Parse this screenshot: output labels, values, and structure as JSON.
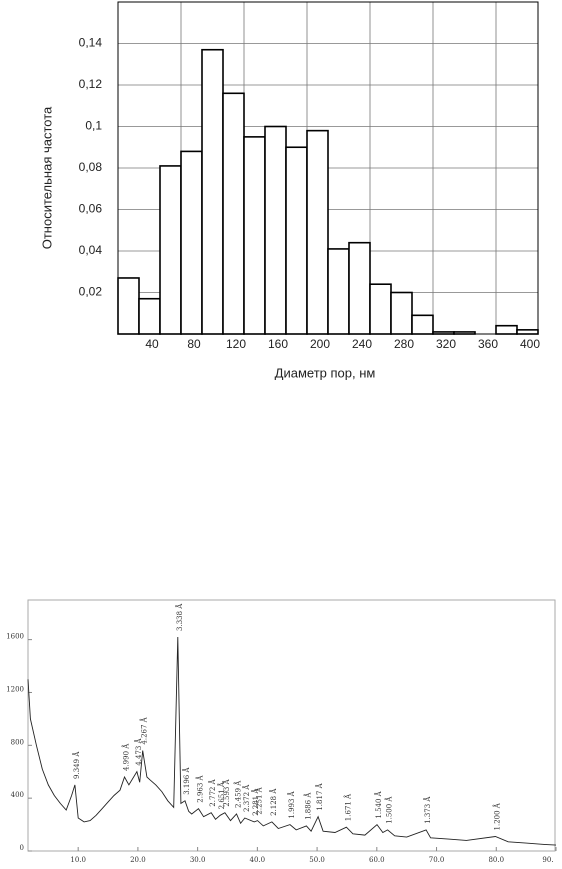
{
  "chart_data": [
    {
      "type": "histogram",
      "x_label": "Диаметр пор, нм",
      "y_label": "Относительная частота",
      "bins": [
        0,
        20,
        40,
        60,
        80,
        100,
        120,
        140,
        160,
        180,
        200,
        220,
        240,
        260,
        280,
        300,
        320,
        340,
        360,
        380,
        400
      ],
      "values": [
        0.027,
        0.017,
        0.081,
        0.088,
        0.137,
        0.116,
        0.095,
        0.1,
        0.09,
        0.098,
        0.041,
        0.044,
        0.024,
        0.02,
        0.009,
        0.001,
        0.001,
        0,
        0.004,
        0.002
      ],
      "color": "#ffffff",
      "xlim": [
        0,
        400
      ],
      "xticks": [
        40,
        80,
        120,
        160,
        200,
        240,
        280,
        320,
        360,
        400
      ],
      "x_grid_lines": [
        60,
        120,
        180,
        240,
        300,
        360
      ],
      "ylim": [
        0,
        0.16
      ],
      "yticks": [
        {
          "value": 0.02,
          "label": "0,02"
        },
        {
          "value": 0.04,
          "label": "0,04"
        },
        {
          "value": 0.06,
          "label": "0,06"
        },
        {
          "value": 0.08,
          "label": "0,08"
        },
        {
          "value": 0.1,
          "label": "0,1"
        },
        {
          "value": 0.12,
          "label": "0,12"
        },
        {
          "value": 0.14,
          "label": "0,14"
        }
      ],
      "grid": true
    },
    {
      "type": "line",
      "x": [
        1.6,
        2,
        3,
        4,
        5,
        6,
        7,
        8,
        8.9,
        9.45,
        10,
        11,
        12,
        13,
        14,
        15,
        16,
        17,
        17.76,
        18.5,
        19.83,
        20.3,
        20.8,
        21.5,
        22,
        23,
        24,
        25,
        26,
        26.68,
        27.2,
        27.89,
        28.5,
        29,
        30.14,
        31,
        32.27,
        33,
        33.78,
        34.56,
        35.5,
        36.51,
        37.2,
        37.9,
        39.47,
        40.02,
        41,
        42.44,
        43.5,
        45.47,
        46.5,
        48.21,
        49,
        50.17,
        51,
        53,
        54.9,
        56,
        58,
        60.03,
        61,
        61.8,
        63,
        65,
        68.25,
        69,
        72,
        75,
        79.86,
        82,
        85,
        88,
        90
      ],
      "values": [
        1300,
        1000,
        800,
        620,
        500,
        420,
        360,
        310,
        420,
        500,
        250,
        220,
        230,
        270,
        320,
        370,
        420,
        460,
        560,
        500,
        600,
        520,
        760,
        560,
        540,
        500,
        450,
        380,
        330,
        1620,
        360,
        380,
        300,
        280,
        320,
        260,
        290,
        240,
        270,
        290,
        230,
        280,
        210,
        250,
        220,
        230,
        190,
        220,
        170,
        200,
        160,
        190,
        150,
        260,
        150,
        140,
        180,
        130,
        120,
        200,
        140,
        160,
        115,
        105,
        160,
        100,
        90,
        80,
        110,
        70,
        60,
        50,
        45
      ],
      "color": "#222222",
      "xlim": [
        1.6,
        90
      ],
      "xticks": [
        {
          "value": 10,
          "label": "10.0"
        },
        {
          "value": 20,
          "label": "20.0"
        },
        {
          "value": 30,
          "label": "30.0"
        },
        {
          "value": 40,
          "label": "40.0"
        },
        {
          "value": 50,
          "label": "50.0"
        },
        {
          "value": 60,
          "label": "60.0"
        },
        {
          "value": 70,
          "label": "70.0"
        },
        {
          "value": 80,
          "label": "80.0"
        },
        {
          "value": 90,
          "label": "90."
        }
      ],
      "ylim": [
        0,
        1900
      ],
      "yticks": [
        0,
        400,
        800,
        1200,
        1600
      ],
      "annotations": [
        {
          "x": 9.45,
          "label": "9.349 Å"
        },
        {
          "x": 17.76,
          "label": "4.990 Å"
        },
        {
          "x": 19.83,
          "label": "4.473 Å"
        },
        {
          "x": 20.8,
          "label": "4.267 Å"
        },
        {
          "x": 26.68,
          "label": "3.338 Å"
        },
        {
          "x": 27.89,
          "label": "3.196 Å"
        },
        {
          "x": 30.14,
          "label": "2.963 Å"
        },
        {
          "x": 32.27,
          "label": "2.772 Å"
        },
        {
          "x": 33.78,
          "label": "2.651 Å"
        },
        {
          "x": 34.56,
          "label": "2.593 Å"
        },
        {
          "x": 36.51,
          "label": "2.459 Å"
        },
        {
          "x": 37.9,
          "label": "2.372 Å"
        },
        {
          "x": 39.47,
          "label": "2.281 Å"
        },
        {
          "x": 40.02,
          "label": "2.251 Å"
        },
        {
          "x": 42.44,
          "label": "2.128 Å"
        },
        {
          "x": 45.47,
          "label": "1.993 Å"
        },
        {
          "x": 48.21,
          "label": "1.886 Å"
        },
        {
          "x": 50.17,
          "label": "1.817 Å"
        },
        {
          "x": 54.9,
          "label": "1.671 Å"
        },
        {
          "x": 60.03,
          "label": "1.540 Å"
        },
        {
          "x": 61.8,
          "label": "1.500 Å"
        },
        {
          "x": 68.25,
          "label": "1.373 Å"
        },
        {
          "x": 79.86,
          "label": "1.200 Å"
        }
      ]
    }
  ]
}
